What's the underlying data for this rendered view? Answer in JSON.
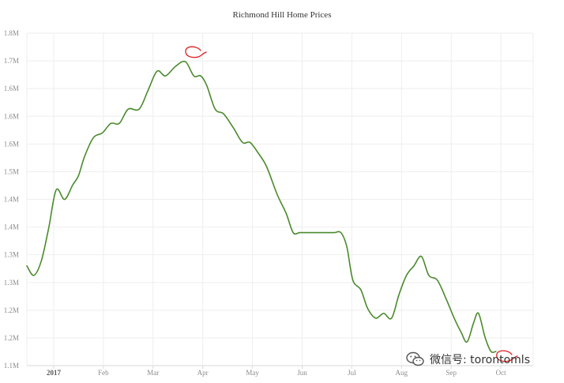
{
  "chart_data": {
    "type": "line",
    "title": "Richmond Hill Home Prices",
    "xlabel": "",
    "ylabel": "",
    "y_tick_labels": [
      "1.1M",
      "1.2M",
      "1.2M",
      "1.3M",
      "1.3M",
      "1.4M",
      "1.4M",
      "1.5M",
      "1.6M",
      "1.6M",
      "1.6M",
      "1.7M",
      "1.8M"
    ],
    "ylim": [
      1.1,
      1.8
    ],
    "y_unit": "M",
    "x_tick_labels": [
      {
        "label": "2017",
        "x": 1,
        "bold": true
      },
      {
        "label": "Feb",
        "x": 2
      },
      {
        "label": "Mar",
        "x": 3
      },
      {
        "label": "Apr",
        "x": 4
      },
      {
        "label": "May",
        "x": 5
      },
      {
        "label": "Jun",
        "x": 6
      },
      {
        "label": "Jul",
        "x": 7
      },
      {
        "label": "Aug",
        "x": 8
      },
      {
        "label": "Sep",
        "x": 9
      },
      {
        "label": "Oct",
        "x": 10
      }
    ],
    "xlim": [
      0.46,
      10.65
    ],
    "grid": true,
    "series": [
      {
        "color": "#4a8a2c",
        "points": [
          [
            0.46,
            1.31
          ],
          [
            0.6,
            1.29
          ],
          [
            0.75,
            1.32
          ],
          [
            0.9,
            1.39
          ],
          [
            1.05,
            1.47
          ],
          [
            1.22,
            1.45
          ],
          [
            1.38,
            1.48
          ],
          [
            1.5,
            1.5
          ],
          [
            1.62,
            1.54
          ],
          [
            1.8,
            1.58
          ],
          [
            1.98,
            1.59
          ],
          [
            2.15,
            1.61
          ],
          [
            2.32,
            1.61
          ],
          [
            2.5,
            1.64
          ],
          [
            2.72,
            1.64
          ],
          [
            2.9,
            1.68
          ],
          [
            3.08,
            1.72
          ],
          [
            3.25,
            1.71
          ],
          [
            3.45,
            1.73
          ],
          [
            3.65,
            1.74
          ],
          [
            3.82,
            1.71
          ],
          [
            3.96,
            1.71
          ],
          [
            4.08,
            1.69
          ],
          [
            4.25,
            1.64
          ],
          [
            4.42,
            1.63
          ],
          [
            4.62,
            1.6
          ],
          [
            4.8,
            1.57
          ],
          [
            4.95,
            1.57
          ],
          [
            5.1,
            1.55
          ],
          [
            5.28,
            1.52
          ],
          [
            5.5,
            1.46
          ],
          [
            5.68,
            1.42
          ],
          [
            5.82,
            1.38
          ],
          [
            5.95,
            1.38
          ],
          [
            6.1,
            1.38
          ],
          [
            6.35,
            1.38
          ],
          [
            6.5,
            1.38
          ],
          [
            6.65,
            1.38
          ],
          [
            6.78,
            1.38
          ],
          [
            6.9,
            1.35
          ],
          [
            7.02,
            1.28
          ],
          [
            7.18,
            1.26
          ],
          [
            7.32,
            1.22
          ],
          [
            7.48,
            1.2
          ],
          [
            7.64,
            1.21
          ],
          [
            7.8,
            1.2
          ],
          [
            7.95,
            1.25
          ],
          [
            8.1,
            1.29
          ],
          [
            8.25,
            1.31
          ],
          [
            8.4,
            1.33
          ],
          [
            8.55,
            1.29
          ],
          [
            8.72,
            1.28
          ],
          [
            8.9,
            1.24
          ],
          [
            9.06,
            1.2
          ],
          [
            9.2,
            1.17
          ],
          [
            9.32,
            1.15
          ],
          [
            9.45,
            1.19
          ],
          [
            9.55,
            1.21
          ],
          [
            9.68,
            1.16
          ],
          [
            9.8,
            1.13
          ],
          [
            9.9,
            1.13
          ]
        ]
      }
    ],
    "annotations": [
      {
        "shape": "circle-mark",
        "x": 3.8,
        "y": 1.76,
        "color": "#e02020"
      },
      {
        "shape": "circle-mark",
        "x": 10.06,
        "y": 1.12,
        "color": "#e02020"
      }
    ]
  },
  "watermark": {
    "text": "微信号: torontomls"
  }
}
